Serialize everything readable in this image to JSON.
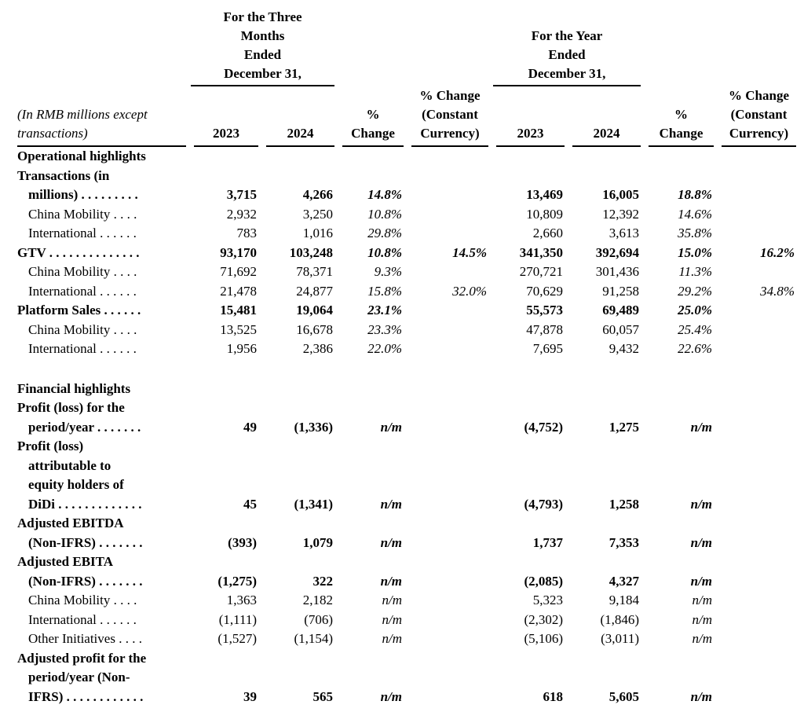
{
  "header": {
    "period_q4": "For the Three\nMonths\nEnded\nDecember 31,",
    "period_fy": "For the Year\nEnded\nDecember 31,",
    "note": "(In RMB millions except\ntransactions)",
    "col_2023": "2023",
    "col_2024": "2024",
    "pct_change": "%\nChange",
    "pct_change_cc": "% Change\n(Constant\nCurrency)"
  },
  "table": {
    "column_keys": [
      "q4_2023",
      "q4_2024",
      "q4_pct_change",
      "q4_pct_change_constant_currency",
      "fy_2023",
      "fy_2024",
      "fy_pct_change",
      "fy_pct_change_constant_currency"
    ],
    "rows": [
      {
        "type": "section",
        "label": "Operational highlights"
      },
      {
        "type": "data",
        "style": "bold",
        "indent": 0,
        "lines": [
          "Transactions (in",
          "millions)"
        ],
        "leader": ". . . . . . . . .",
        "cells": [
          "3,715",
          "4,266",
          "14.8%",
          "",
          "13,469",
          "16,005",
          "18.8%",
          ""
        ]
      },
      {
        "type": "data",
        "style": "regular",
        "indent": 1,
        "lines": [
          "China Mobility"
        ],
        "leader": ". . . .",
        "cells": [
          "2,932",
          "3,250",
          "10.8%",
          "",
          "10,809",
          "12,392",
          "14.6%",
          ""
        ]
      },
      {
        "type": "data",
        "style": "regular",
        "indent": 1,
        "lines": [
          "International"
        ],
        "leader": ". . . . . .",
        "cells": [
          "783",
          "1,016",
          "29.8%",
          "",
          "2,660",
          "3,613",
          "35.8%",
          ""
        ]
      },
      {
        "type": "data",
        "style": "bold",
        "indent": 0,
        "lines": [
          "GTV"
        ],
        "leader": ". . . . . . . . . . . . . .",
        "cells": [
          "93,170",
          "103,248",
          "10.8%",
          "14.5%",
          "341,350",
          "392,694",
          "15.0%",
          "16.2%"
        ]
      },
      {
        "type": "data",
        "style": "regular",
        "indent": 1,
        "lines": [
          "China Mobility"
        ],
        "leader": ". . . .",
        "cells": [
          "71,692",
          "78,371",
          "9.3%",
          "",
          "270,721",
          "301,436",
          "11.3%",
          ""
        ]
      },
      {
        "type": "data",
        "style": "regular",
        "indent": 1,
        "lines": [
          "International"
        ],
        "leader": ". . . . . .",
        "cells": [
          "21,478",
          "24,877",
          "15.8%",
          "32.0%",
          "70,629",
          "91,258",
          "29.2%",
          "34.8%"
        ]
      },
      {
        "type": "data",
        "style": "bold",
        "indent": 0,
        "lines": [
          "Platform Sales"
        ],
        "leader": ". . . . . .",
        "cells": [
          "15,481",
          "19,064",
          "23.1%",
          "",
          "55,573",
          "69,489",
          "25.0%",
          ""
        ]
      },
      {
        "type": "data",
        "style": "regular",
        "indent": 1,
        "lines": [
          "China Mobility"
        ],
        "leader": ". . . .",
        "cells": [
          "13,525",
          "16,678",
          "23.3%",
          "",
          "47,878",
          "60,057",
          "25.4%",
          ""
        ]
      },
      {
        "type": "data",
        "style": "regular",
        "indent": 1,
        "lines": [
          "International"
        ],
        "leader": ". . . . . .",
        "cells": [
          "1,956",
          "2,386",
          "22.0%",
          "",
          "7,695",
          "9,432",
          "22.6%",
          ""
        ]
      },
      {
        "type": "spacer"
      },
      {
        "type": "section",
        "label": "Financial highlights"
      },
      {
        "type": "data",
        "style": "bold",
        "indent": 0,
        "lines": [
          "Profit (loss) for the",
          "period/year"
        ],
        "leader": ". . . . . . .",
        "cells": [
          "49",
          "(1,336)",
          "n/m",
          "",
          "(4,752)",
          "1,275",
          "n/m",
          ""
        ]
      },
      {
        "type": "data",
        "style": "bold",
        "indent": 0,
        "lines": [
          "Profit (loss)",
          "attributable to",
          "equity holders of",
          "DiDi"
        ],
        "leader": ". . . . . . . . . . . . .",
        "cells": [
          "45",
          "(1,341)",
          "n/m",
          "",
          "(4,793)",
          "1,258",
          "n/m",
          ""
        ]
      },
      {
        "type": "data",
        "style": "bold",
        "indent": 0,
        "lines": [
          "Adjusted EBITDA",
          "(Non-IFRS)"
        ],
        "leader": ". . . . . . .",
        "cells": [
          "(393)",
          "1,079",
          "n/m",
          "",
          "1,737",
          "7,353",
          "n/m",
          ""
        ]
      },
      {
        "type": "data",
        "style": "bold",
        "indent": 0,
        "lines": [
          "Adjusted EBITA",
          "(Non-IFRS)"
        ],
        "leader": ". . . . . . .",
        "cells": [
          "(1,275)",
          "322",
          "n/m",
          "",
          "(2,085)",
          "4,327",
          "n/m",
          ""
        ]
      },
      {
        "type": "data",
        "style": "regular",
        "indent": 1,
        "lines": [
          "China Mobility"
        ],
        "leader": ". . . .",
        "cells": [
          "1,363",
          "2,182",
          "n/m",
          "",
          "5,323",
          "9,184",
          "n/m",
          ""
        ]
      },
      {
        "type": "data",
        "style": "regular",
        "indent": 1,
        "lines": [
          "International"
        ],
        "leader": ". . . . . .",
        "cells": [
          "(1,111)",
          "(706)",
          "n/m",
          "",
          "(2,302)",
          "(1,846)",
          "n/m",
          ""
        ]
      },
      {
        "type": "data",
        "style": "regular",
        "indent": 1,
        "lines": [
          "Other Initiatives"
        ],
        "leader": ". . . .",
        "cells": [
          "(1,527)",
          "(1,154)",
          "n/m",
          "",
          "(5,106)",
          "(3,011)",
          "n/m",
          ""
        ]
      },
      {
        "type": "data",
        "style": "bold",
        "indent": 0,
        "lines": [
          "Adjusted profit for the",
          "period/year (Non-",
          "IFRS)"
        ],
        "leader": ". . . . . . . . . . . .",
        "cells": [
          "39",
          "565",
          "n/m",
          "",
          "618",
          "5,605",
          "n/m",
          ""
        ]
      }
    ]
  }
}
